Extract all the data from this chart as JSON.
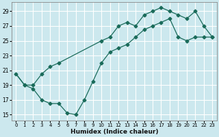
{
  "xlabel": "Humidex (Indice chaleur)",
  "bg_color": "#cce8ee",
  "grid_color": "#ffffff",
  "line_color": "#1a6b5a",
  "xlim": [
    -0.5,
    23.5
  ],
  "ylim": [
    14.2,
    30.2
  ],
  "xticks": [
    0,
    1,
    2,
    3,
    4,
    5,
    6,
    7,
    8,
    9,
    10,
    11,
    12,
    13,
    14,
    15,
    16,
    17,
    18,
    19,
    20,
    21,
    22,
    23
  ],
  "yticks": [
    15,
    17,
    19,
    21,
    23,
    25,
    27,
    29
  ],
  "upper_x": [
    0,
    1,
    2,
    3,
    4,
    5,
    10,
    11,
    12,
    13,
    14,
    15,
    16,
    17,
    18,
    19,
    20,
    21,
    22,
    23
  ],
  "upper_y": [
    20.5,
    19.0,
    19.0,
    20.5,
    21.5,
    22.0,
    25.0,
    25.5,
    27.0,
    27.5,
    27.0,
    28.5,
    29.0,
    29.5,
    29.0,
    28.5,
    28.0,
    29.0,
    27.0,
    25.5
  ],
  "lower_x": [
    1,
    2,
    3,
    4,
    5,
    6,
    7,
    8,
    9,
    10,
    11,
    12,
    13,
    14,
    15,
    16,
    17,
    18,
    19,
    20,
    21,
    22,
    23
  ],
  "lower_y": [
    19.0,
    18.5,
    17.0,
    16.5,
    16.5,
    15.2,
    15.0,
    17.0,
    19.5,
    22.0,
    23.5,
    24.0,
    24.5,
    25.5,
    26.5,
    27.0,
    27.5,
    28.0,
    25.5,
    25.0,
    25.5,
    25.5,
    25.5
  ]
}
